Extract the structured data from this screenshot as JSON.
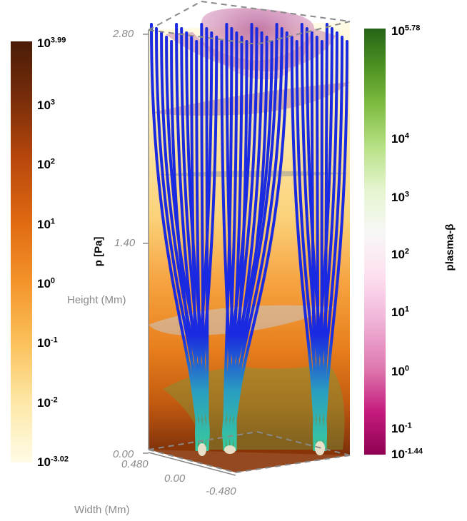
{
  "chart_data": {
    "type": "3d-volume-rendering",
    "axes": {
      "height": {
        "label": "Height (Mm)",
        "ticks": [
          "0.00",
          "1.40",
          "2.80"
        ],
        "range": [
          0,
          2.8
        ]
      },
      "width": {
        "label": "Width (Mm)",
        "ticks": [
          "0.480",
          "0.00",
          "-0.480"
        ],
        "range": [
          -0.48,
          0.48
        ]
      }
    },
    "colorbars": [
      {
        "name": "pressure",
        "label": "p [Pa]",
        "scale": "log",
        "range_exponent": [
          -3.02,
          3.99
        ],
        "ticks": [
          {
            "base": "10",
            "exp": "3.99"
          },
          {
            "base": "10",
            "exp": "3"
          },
          {
            "base": "10",
            "exp": "2"
          },
          {
            "base": "10",
            "exp": "1"
          },
          {
            "base": "10",
            "exp": "0"
          },
          {
            "base": "10",
            "exp": "-1"
          },
          {
            "base": "10",
            "exp": "-2"
          },
          {
            "base": "10",
            "exp": "-3.02"
          }
        ],
        "colors": [
          "#fffbe6",
          "#fde8a8",
          "#fbc25c",
          "#f4932a",
          "#e06a12",
          "#b8470c",
          "#7a2e0a",
          "#4a1c08"
        ]
      },
      {
        "name": "plasma-beta",
        "label": "plasma-β",
        "scale": "log",
        "range_exponent": [
          -1.44,
          5.78
        ],
        "ticks": [
          {
            "base": "10",
            "exp": "5.78"
          },
          {
            "base": "10",
            "exp": "4"
          },
          {
            "base": "10",
            "exp": "3"
          },
          {
            "base": "10",
            "exp": "2"
          },
          {
            "base": "10",
            "exp": "1"
          },
          {
            "base": "10",
            "exp": "0"
          },
          {
            "base": "10",
            "exp": "-1"
          },
          {
            "base": "10",
            "exp": "-1.44"
          }
        ],
        "colors": [
          "#8e0152",
          "#c51b7d",
          "#de77ae",
          "#f1b6da",
          "#fde0ef",
          "#f7f7f7",
          "#e6f5d0",
          "#b8e186",
          "#7fbc41",
          "#4d9221",
          "#276419"
        ]
      }
    ],
    "field_lines": {
      "color_top": "#1a2ae0",
      "color_bottom": "#3ad09a",
      "count": 40
    },
    "isosurfaces": [
      "#c77aa8",
      "#b8a0b0",
      "#a8a8a8",
      "#c8c8c8",
      "#7a9a3a"
    ]
  }
}
